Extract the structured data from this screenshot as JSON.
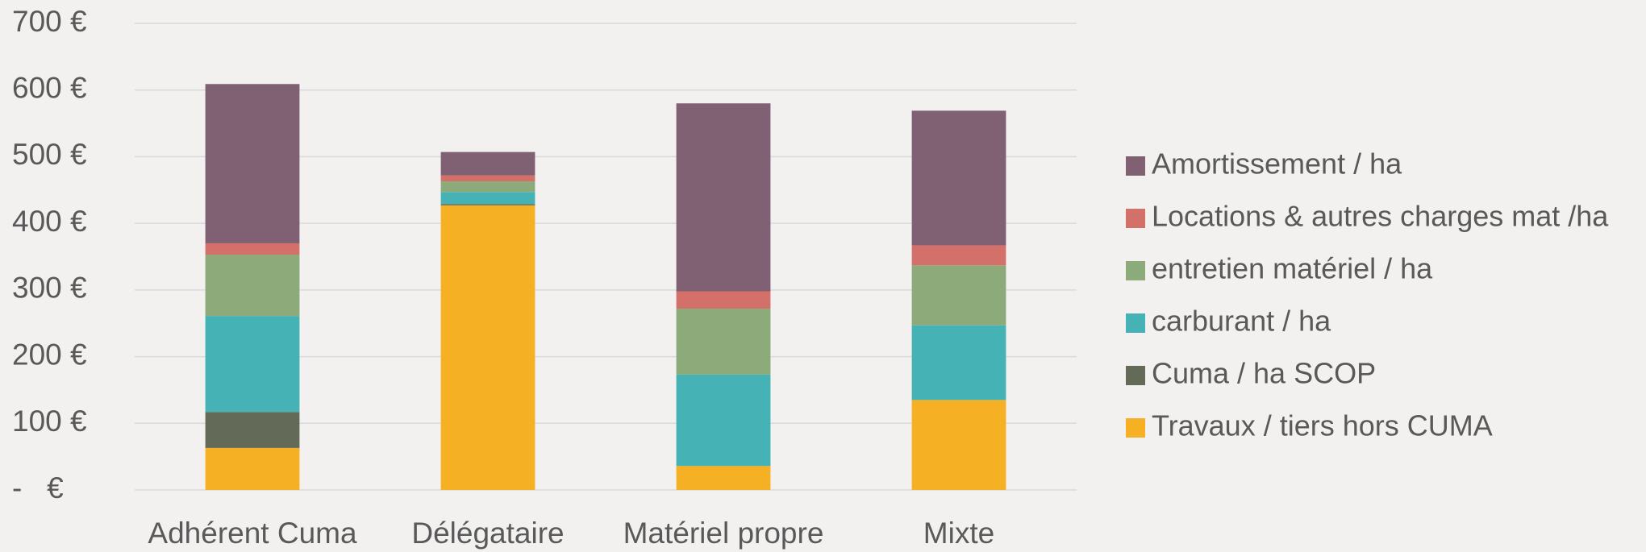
{
  "chart_data": {
    "type": "stacked_bar",
    "categories": [
      "Adhérent Cuma",
      "Délégataire",
      "Matériel propre",
      "Mixte"
    ],
    "series": [
      {
        "name": "Travaux / tiers hors CUMA",
        "color": "#f5b024",
        "values": [
          63,
          427,
          36,
          135
        ]
      },
      {
        "name": "Cuma / ha SCOP",
        "color": "#636b58",
        "values": [
          54,
          2,
          0,
          0
        ]
      },
      {
        "name": "carburant / ha",
        "color": "#45b2b5",
        "values": [
          144,
          18,
          137,
          112
        ]
      },
      {
        "name": "entretien matériel / ha",
        "color": "#8daa7b",
        "values": [
          92,
          16,
          99,
          90
        ]
      },
      {
        "name": "Locations & autres charges mat /ha",
        "color": "#d4706a",
        "values": [
          17,
          9,
          26,
          30
        ]
      },
      {
        "name": "Amortissement / ha",
        "color": "#806073",
        "values": [
          239,
          35,
          282,
          202
        ]
      }
    ],
    "ylim": [
      0,
      700
    ],
    "yticks": [
      {
        "value": 0,
        "label": "-   €"
      },
      {
        "value": 100,
        "label": "100 €"
      },
      {
        "value": 200,
        "label": "200 €"
      },
      {
        "value": 300,
        "label": "300 €"
      },
      {
        "value": 400,
        "label": "400 €"
      },
      {
        "value": 500,
        "label": "500 €"
      },
      {
        "value": 600,
        "label": "600 €"
      },
      {
        "value": 700,
        "label": "700 €"
      }
    ],
    "grid": true,
    "legend": "right"
  }
}
